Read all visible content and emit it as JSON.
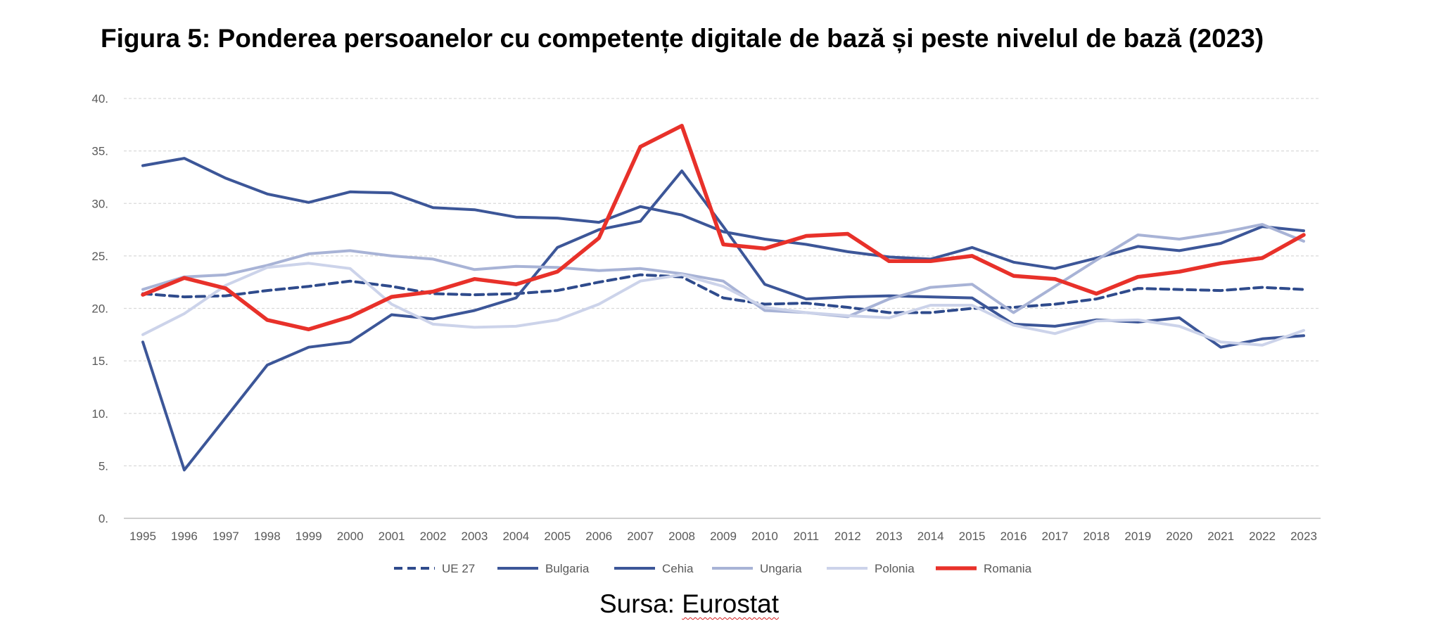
{
  "title": "Figura 5: Ponderea persoanelor cu competențe digitale de bază și peste nivelul de bază (2023)",
  "source": {
    "prefix": "Sursa: ",
    "name": "Eurostat"
  },
  "chart_data": {
    "type": "line",
    "title": "",
    "xlabel": "",
    "ylabel": "",
    "ylim": [
      0,
      40
    ],
    "yticks": [
      0,
      5,
      10,
      15,
      20,
      25,
      30,
      35,
      40
    ],
    "ytick_labels": [
      "0.",
      "5.",
      "10.",
      "15.",
      "20.",
      "25.",
      "30.",
      "35.",
      "40."
    ],
    "grid": "horizontal dashed",
    "legend_position": "bottom",
    "x": [
      "1995",
      "1996",
      "1997",
      "1998",
      "1999",
      "2000",
      "2001",
      "2002",
      "2003",
      "2004",
      "2005",
      "2006",
      "2007",
      "2008",
      "2009",
      "2010",
      "2011",
      "2012",
      "2013",
      "2014",
      "2015",
      "2016",
      "2017",
      "2018",
      "2019",
      "2020",
      "2021",
      "2022",
      "2023"
    ],
    "series": [
      {
        "name": "UE 27",
        "color": "#2f4b8c",
        "style": "dashed",
        "values": [
          21.4,
          21.1,
          21.2,
          21.7,
          22.1,
          22.6,
          22.1,
          21.4,
          21.3,
          21.4,
          21.7,
          22.5,
          23.2,
          23.0,
          21.0,
          20.4,
          20.5,
          20.1,
          19.6,
          19.6,
          20.0,
          20.1,
          20.4,
          20.9,
          21.9,
          21.8,
          21.7,
          22.0,
          21.8
        ]
      },
      {
        "name": "Bulgaria",
        "color": "#3c5698",
        "style": "solid",
        "values": [
          16.8,
          4.6,
          9.6,
          14.6,
          16.3,
          16.8,
          19.4,
          19.0,
          19.8,
          21.0,
          25.8,
          27.5,
          28.3,
          33.1,
          27.8,
          22.3,
          20.9,
          21.1,
          21.2,
          21.1,
          21.0,
          18.5,
          18.3,
          18.9,
          18.7,
          19.1,
          16.3,
          17.1,
          17.4
        ]
      },
      {
        "name": "Cehia",
        "color": "#3c5698",
        "style": "solid",
        "values": [
          33.6,
          34.3,
          32.4,
          30.9,
          30.1,
          31.1,
          31.0,
          29.6,
          29.4,
          28.7,
          28.6,
          28.2,
          29.7,
          28.9,
          27.3,
          26.6,
          26.1,
          25.4,
          24.9,
          24.7,
          25.8,
          24.4,
          23.8,
          24.8,
          25.9,
          25.5,
          26.2,
          27.8,
          27.4
        ]
      },
      {
        "name": "Ungaria",
        "color": "#a8b3d6",
        "style": "solid",
        "values": [
          21.8,
          23.0,
          23.2,
          24.1,
          25.2,
          25.5,
          25.0,
          24.7,
          23.7,
          24.0,
          23.9,
          23.6,
          23.8,
          23.3,
          22.6,
          19.8,
          19.6,
          19.2,
          20.9,
          22.0,
          22.3,
          19.6,
          22.1,
          24.6,
          27.0,
          26.6,
          27.2,
          28.0,
          26.4
        ]
      },
      {
        "name": "Polonia",
        "color": "#ccd3ea",
        "style": "solid",
        "values": [
          17.5,
          19.5,
          22.2,
          23.9,
          24.3,
          23.8,
          20.4,
          18.5,
          18.2,
          18.3,
          18.9,
          20.4,
          22.6,
          23.2,
          22.1,
          20.1,
          19.6,
          19.3,
          19.1,
          20.3,
          20.3,
          18.4,
          17.6,
          18.8,
          18.9,
          18.3,
          16.8,
          16.5,
          17.9
        ]
      },
      {
        "name": "Romania",
        "color": "#e8312a",
        "style": "solid",
        "values": [
          21.3,
          22.9,
          21.9,
          18.9,
          18.0,
          19.2,
          21.1,
          21.6,
          22.8,
          22.3,
          23.5,
          26.7,
          35.4,
          37.4,
          26.1,
          25.7,
          26.9,
          27.1,
          24.5,
          24.5,
          25.0,
          23.1,
          22.8,
          21.4,
          23.0,
          23.5,
          24.3,
          24.8,
          27.0
        ]
      }
    ]
  }
}
